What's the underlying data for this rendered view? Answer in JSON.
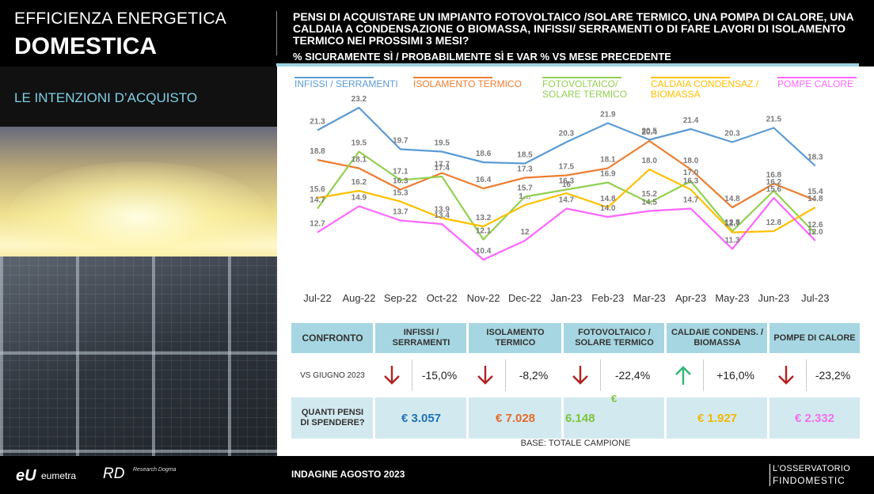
{
  "header": {
    "title_line1": "EFFICIENZA ENERGETICA",
    "title_line2": "DOMESTICA",
    "question": "PENSI DI ACQUISTARE UN IMPIANTO FOTOVOLTAICO /SOLARE TERMICO, UNA POMPA DI CALORE, UNA CALDAIA A CONDENSAZIONE O BIOMASSA, INFISSI/ SERRAMENTI O DI FARE LAVORI DI ISOLAMENTO TERMICO NEI PROSSIMI 3 MESI?",
    "subtitle": "% SICURAMENTE SÌ / PROBABILMENTE SÌ E VAR % VS MESE PRECEDENTE"
  },
  "section": {
    "title": "LE INTENZIONI D’ACQUISTO"
  },
  "chart_data": {
    "type": "line",
    "categories": [
      "Jul-22",
      "Aug-22",
      "Sep-22",
      "Oct-22",
      "Nov-22",
      "Dec-22",
      "Jan-23",
      "Feb-23",
      "Mar-23",
      "Apr-23",
      "May-23",
      "Jun-23",
      "Jul-23"
    ],
    "series": [
      {
        "name": "INFISSI / SERRAMENTI",
        "color": "#5b9bd5",
        "values": [
          21.3,
          23.2,
          19.7,
          19.5,
          18.6,
          18.5,
          20.3,
          21.9,
          20.5,
          21.4,
          20.3,
          21.5,
          18.3
        ],
        "labels": [
          "21.3",
          "23.2",
          "19.7",
          "19.5",
          "18.6",
          "18.5",
          "20.3",
          "21.9",
          "20.5",
          "21.4",
          "20.3",
          "21.5",
          "18.3"
        ]
      },
      {
        "name": "ISOLAMENTO TERMICO",
        "color": "#ed7d31",
        "values": [
          18.8,
          18.1,
          16.3,
          17.7,
          16.4,
          17.3,
          17.5,
          18.1,
          20.4,
          18.0,
          14.8,
          16.8,
          15.4
        ],
        "labels": [
          "18.8",
          "18.1",
          "16.3",
          "17.7",
          "16.4",
          "17.3",
          "17.5",
          "18.1",
          "20.4",
          "18.0",
          "14.8",
          "16.8",
          "15.4"
        ]
      },
      {
        "name": "FOTOVOLTAICO/ SOLARE TERMICO",
        "color": "#92d050",
        "values": [
          14.7,
          19.5,
          17.1,
          17.4,
          12.1,
          15.7,
          16.3,
          16.9,
          15.2,
          17.0,
          12.8,
          16.2,
          12.6
        ],
        "labels": [
          "14.7",
          "19.5",
          "17.1",
          "17.4",
          "12.1",
          "15.7",
          "16.3",
          "16.9",
          "15.2",
          "17.0",
          "12.8",
          "16.2",
          "12.6"
        ]
      },
      {
        "name": "CALDAIA CONDENSAZ./ BIOMASSA",
        "color": "#ffc000",
        "values": [
          15.6,
          16.2,
          15.3,
          13.9,
          13.2,
          15.0,
          16.0,
          14.8,
          18.0,
          16.3,
          12.7,
          12.8,
          14.8
        ],
        "labels": [
          "15.6",
          "16.2",
          "15.3",
          "13.9",
          "13.2",
          "1…",
          "16",
          "14.8",
          "18.0",
          "16.3",
          "12.7",
          "12.8",
          "14.8"
        ]
      },
      {
        "name": "POMPE CALORE",
        "color": "#ff66ff",
        "values": [
          12.7,
          14.9,
          13.7,
          13.4,
          10.4,
          12.0,
          14.7,
          14.0,
          14.5,
          14.7,
          11.3,
          15.6,
          12.0
        ],
        "labels": [
          "12.7",
          "14.9",
          "13.7",
          "13.4",
          "10.4",
          "12",
          "14.7",
          "14.0",
          "14.5",
          "14.7",
          "11.3",
          "15.6",
          "12.0"
        ]
      }
    ],
    "ylim": [
      9,
      24
    ],
    "grid": false,
    "legend_position": "top"
  },
  "comparison": {
    "header_label": "CONFRONTO",
    "row_vs_label": "VS GIUGNO 2023",
    "row_spend_label": "QUANTI PENSI DI SPENDERE?",
    "columns": [
      {
        "title": "INFISSI / SERRAMENTI",
        "direction": "down",
        "change": "-15,0%",
        "spend": "€ 3.057",
        "color": "#1f72b8"
      },
      {
        "title": "ISOLAMENTO TERMICO",
        "direction": "down",
        "change": "-8,2%",
        "spend": "€ 7.028",
        "color": "#e46c2a"
      },
      {
        "title": "FOTOVOLTAICO / SOLARE TERMICO",
        "direction": "down",
        "change": "-22,4%",
        "spend": "6.148",
        "spend_currency": "€",
        "color": "#7ec43f"
      },
      {
        "title": "CALDAIE CONDENS. / BIOMASSA",
        "direction": "up",
        "change": "+16,0%",
        "spend": "€ 1.927",
        "color": "#f2b705"
      },
      {
        "title": "POMPE DI CALORE",
        "direction": "down",
        "change": "-23,2%",
        "spend": "€ 2.332",
        "color": "#f06ff0"
      }
    ],
    "arrow_colors": {
      "down": "#b22222",
      "up": "#2eb872"
    }
  },
  "base_note": "BASE: TOTALE CAMPIONE",
  "footer": {
    "logo_eumetra_mark": "eU",
    "logo_eumetra_text": "eumetra",
    "logo_rd_mark": "RD",
    "logo_rd_text": "Research Dogma",
    "survey": "INDAGINE AGOSTO  2023",
    "osservatorio_line1": "L’OSSERVATORIO",
    "osservatorio_line2": "FINDOMESTIC"
  }
}
